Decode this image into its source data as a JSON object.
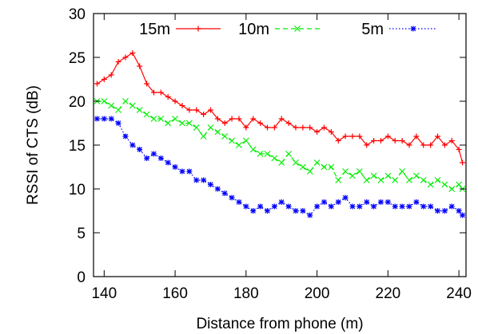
{
  "chart_data": {
    "type": "line",
    "title": "",
    "xlabel": "Distance from phone (m)",
    "ylabel": "RSSI of CTS (dB)",
    "xlim": [
      137,
      242
    ],
    "ylim": [
      0,
      30
    ],
    "xticks": [
      140,
      160,
      180,
      200,
      220,
      240
    ],
    "yticks": [
      0,
      5,
      10,
      15,
      20,
      25,
      30
    ],
    "grid": false,
    "legend_position": "top",
    "series": [
      {
        "name": "15m",
        "color": "#ff0000",
        "marker": "plus",
        "line_style": "solid",
        "x": [
          138,
          140,
          142,
          144,
          146,
          148,
          150,
          152,
          154,
          156,
          158,
          160,
          162,
          164,
          166,
          168,
          170,
          172,
          174,
          176,
          178,
          180,
          182,
          184,
          186,
          188,
          190,
          192,
          194,
          196,
          198,
          200,
          202,
          204,
          206,
          208,
          210,
          212,
          214,
          216,
          218,
          220,
          222,
          224,
          226,
          228,
          230,
          232,
          234,
          236,
          238,
          240,
          241
        ],
        "y": [
          22,
          22.5,
          23,
          24.5,
          25,
          25.5,
          24,
          22,
          21,
          21,
          20.5,
          20,
          19.5,
          19,
          19,
          18.5,
          19,
          18,
          17.5,
          18,
          18,
          17,
          18,
          17.5,
          17,
          17,
          18,
          17.5,
          17,
          17,
          17,
          16.5,
          17,
          16.5,
          15.5,
          16,
          16,
          16,
          15,
          15.5,
          15.5,
          16,
          15.5,
          15.5,
          15,
          16,
          15,
          15,
          16,
          15,
          15.5,
          14.5,
          13
        ]
      },
      {
        "name": "10m",
        "color": "#00ee00",
        "marker": "x",
        "line_style": "dashed",
        "x": [
          138,
          140,
          142,
          144,
          146,
          148,
          150,
          152,
          154,
          156,
          158,
          160,
          162,
          164,
          166,
          168,
          170,
          172,
          174,
          176,
          178,
          180,
          182,
          184,
          186,
          188,
          190,
          192,
          194,
          196,
          198,
          200,
          202,
          204,
          206,
          208,
          210,
          212,
          214,
          216,
          218,
          220,
          222,
          224,
          226,
          228,
          230,
          232,
          234,
          236,
          238,
          240,
          241
        ],
        "y": [
          20,
          20,
          19.5,
          19,
          20,
          19.5,
          19,
          18.5,
          18,
          18,
          17.5,
          18,
          17.5,
          17.5,
          17,
          16,
          17,
          16.5,
          16,
          15.5,
          15,
          15.5,
          14.5,
          14,
          14,
          13.5,
          13,
          14,
          13,
          12.5,
          12,
          13,
          12.5,
          12.5,
          11,
          12,
          11.5,
          12,
          11,
          11.5,
          11,
          11.5,
          11,
          12,
          11,
          11.5,
          11,
          10.5,
          11,
          10.5,
          10,
          10.5,
          10
        ]
      },
      {
        "name": "5m",
        "color": "#0000ff",
        "marker": "star",
        "line_style": "dotted",
        "x": [
          138,
          140,
          142,
          144,
          146,
          148,
          150,
          152,
          154,
          156,
          158,
          160,
          162,
          164,
          166,
          168,
          170,
          172,
          174,
          176,
          178,
          180,
          182,
          184,
          186,
          188,
          190,
          192,
          194,
          196,
          198,
          200,
          202,
          204,
          206,
          208,
          210,
          212,
          214,
          216,
          218,
          220,
          222,
          224,
          226,
          228,
          230,
          232,
          234,
          236,
          238,
          240,
          241
        ],
        "y": [
          18,
          18,
          18,
          17.5,
          16,
          15,
          14.5,
          13.5,
          14,
          13.5,
          13,
          12.5,
          12,
          12,
          11,
          11,
          10.5,
          10,
          9.5,
          9,
          8.5,
          8,
          7.5,
          8,
          7.5,
          8,
          8.5,
          8,
          7.5,
          7.5,
          7,
          8,
          8.5,
          8,
          8.5,
          9,
          8,
          8,
          8.5,
          8,
          8.5,
          8.5,
          8,
          8,
          8,
          8.5,
          8,
          8,
          7.5,
          7.5,
          8,
          7.5,
          7
        ]
      }
    ]
  }
}
